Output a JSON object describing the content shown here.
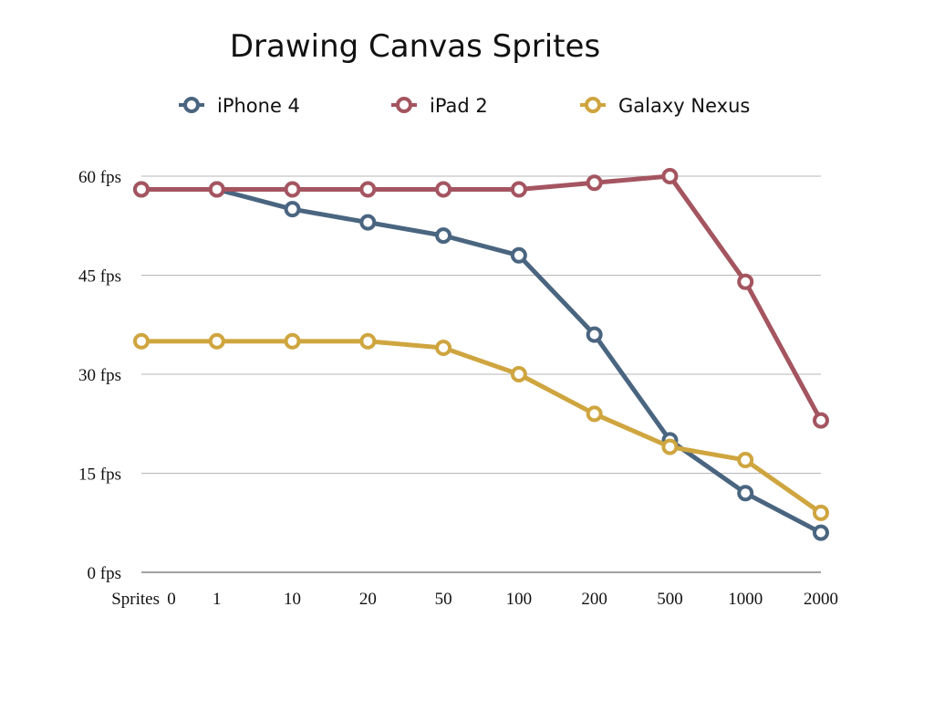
{
  "chart_data": {
    "type": "line",
    "title": "Drawing Canvas Sprites",
    "xlabel": "Sprites",
    "ylabel": "",
    "categories": [
      "0",
      "1",
      "10",
      "20",
      "50",
      "100",
      "200",
      "500",
      "1000",
      "2000"
    ],
    "ylim": [
      0,
      60
    ],
    "y_ticks": [
      {
        "value": 0,
        "label": "0 fps"
      },
      {
        "value": 15,
        "label": "15 fps"
      },
      {
        "value": 30,
        "label": "30 fps"
      },
      {
        "value": 45,
        "label": "45 fps"
      },
      {
        "value": 60,
        "label": "60 fps"
      }
    ],
    "grid": true,
    "legend_position": "top",
    "series": [
      {
        "name": "iPhone 4",
        "color": "#4a6580",
        "values": [
          58,
          58,
          55,
          53,
          51,
          48,
          36,
          20,
          12,
          6
        ]
      },
      {
        "name": "iPad 2",
        "color": "#a45560",
        "values": [
          58,
          58,
          58,
          58,
          58,
          58,
          59,
          60,
          44,
          23
        ]
      },
      {
        "name": "Galaxy Nexus",
        "color": "#cfa53f",
        "values": [
          35,
          35,
          35,
          35,
          34,
          30,
          24,
          19,
          17,
          9
        ]
      }
    ]
  }
}
